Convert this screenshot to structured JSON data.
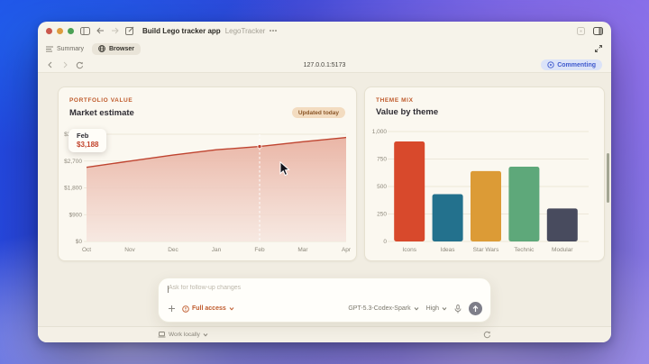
{
  "titlebar": {
    "title": "Build Lego tracker app",
    "project": "LegoTracker"
  },
  "tabs": {
    "summary": "Summary",
    "browser": "Browser"
  },
  "toolbar": {
    "url": "127.0.0.1:5173",
    "commenting_label": "Commenting"
  },
  "portfolio_card": {
    "eyebrow": "PORTFOLIO VALUE",
    "title": "Market estimate",
    "badge": "Updated today",
    "tooltip": {
      "label": "Feb",
      "value": "$3,188"
    }
  },
  "theme_card": {
    "eyebrow": "THEME MIX",
    "title": "Value by theme"
  },
  "chart_data": [
    {
      "type": "area",
      "title": "Market estimate",
      "x": [
        "Oct",
        "Nov",
        "Dec",
        "Jan",
        "Feb",
        "Mar",
        "Apr"
      ],
      "values": [
        2490,
        2700,
        2900,
        3080,
        3188,
        3350,
        3490
      ],
      "yticks": [
        "$3,600",
        "$2,700",
        "$1,800",
        "$900",
        "$0"
      ],
      "ytick_values": [
        3600,
        2700,
        1800,
        900,
        0
      ],
      "ylim": [
        0,
        3600
      ],
      "hover_index": 4,
      "hover_label": "Feb",
      "hover_value": "$3,188",
      "line_color": "#bf4430",
      "fill_color": "#e9b2a2",
      "fill_fade": "#f6e6df",
      "grid": true
    },
    {
      "type": "bar",
      "title": "Value by theme",
      "categories": [
        "Icons",
        "Ideas",
        "Star Wars",
        "Technic",
        "Modular"
      ],
      "values": [
        910,
        430,
        640,
        680,
        300
      ],
      "colors": [
        "#d8492c",
        "#23718d",
        "#dc9b36",
        "#5ea87a",
        "#484b5e"
      ],
      "yticks": [
        "1,000",
        "750",
        "500",
        "250",
        "0"
      ],
      "ytick_values": [
        1000,
        750,
        500,
        250,
        0
      ],
      "ylim": [
        0,
        1000
      ],
      "grid": true
    }
  ],
  "composer": {
    "placeholder": "Ask for follow-up changes",
    "full_access": "Full access",
    "model": "GPT-5.3-Codex-Spark",
    "reasoning": "High"
  },
  "footer": {
    "work_locally": "Work locally"
  },
  "colors": {
    "accent": "#bf5a2b",
    "commenting_blue": "#3f5ace"
  }
}
